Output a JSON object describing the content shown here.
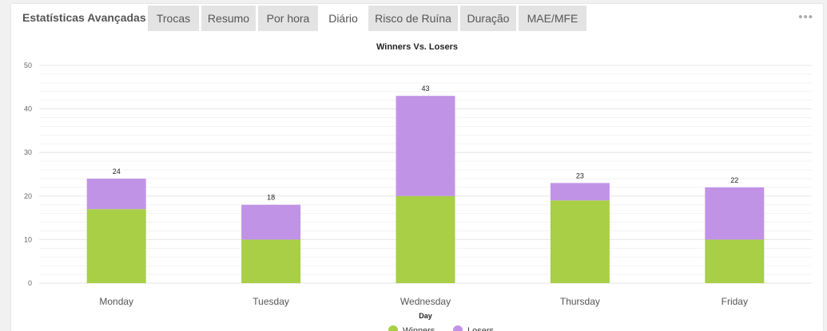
{
  "panel": {
    "title": "Estatísticas Avançadas",
    "tabs": [
      {
        "label": "Trocas",
        "active": false
      },
      {
        "label": "Resumo",
        "active": false
      },
      {
        "label": "Por hora",
        "active": false
      },
      {
        "label": "Diário",
        "active": true
      },
      {
        "label": "Risco de Ruína",
        "active": false
      },
      {
        "label": "Duração",
        "active": false
      },
      {
        "label": "MAE/MFE",
        "active": false
      }
    ],
    "more_icon": "ellipsis-icon",
    "more_glyph": "•••"
  },
  "colors": {
    "winners": "#a8cf45",
    "losers": "#c193e6"
  },
  "chart_data": {
    "type": "bar",
    "stacked": true,
    "title": "Winners Vs. Losers",
    "xlabel": "Day",
    "ylabel": "",
    "categories": [
      "Monday",
      "Tuesday",
      "Wednesday",
      "Thursday",
      "Friday"
    ],
    "series": [
      {
        "name": "Winners",
        "values": [
          17,
          10,
          20,
          19,
          10
        ]
      },
      {
        "name": "Losers",
        "values": [
          7,
          8,
          23,
          4,
          12
        ]
      }
    ],
    "totals": [
      24,
      18,
      43,
      23,
      22
    ],
    "ylim": [
      0,
      50
    ],
    "yticks": [
      0,
      10,
      20,
      30,
      40,
      50
    ],
    "grid": true,
    "legend": "bottom"
  }
}
